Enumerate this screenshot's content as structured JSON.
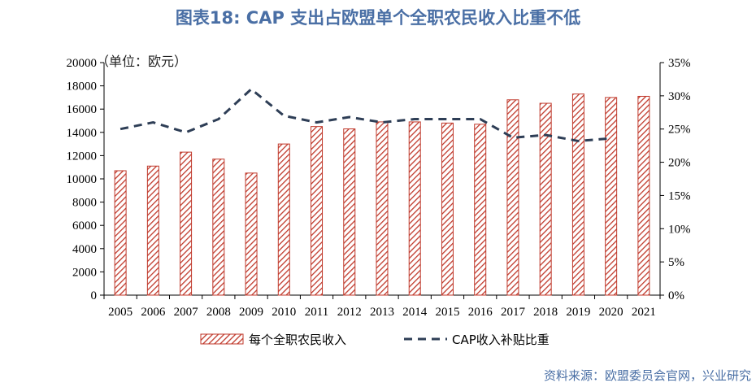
{
  "title": "图表18: CAP 支出占欧盟单个全职农民收入比重不低",
  "unit_label": "（单位：欧元）",
  "source": "资料来源：欧盟委员会官网，兴业研究",
  "colors": {
    "bar_stroke": "#c0392b",
    "bar_fill": "#ffffff",
    "line": "#2e3e56",
    "title": "#4a6fa5"
  },
  "chart_data": {
    "type": "bar",
    "categories": [
      "2005",
      "2006",
      "2007",
      "2008",
      "2009",
      "2010",
      "2011",
      "2012",
      "2013",
      "2014",
      "2015",
      "2016",
      "2017",
      "2018",
      "2019",
      "2020",
      "2021"
    ],
    "left_axis": {
      "ylim": [
        0,
        20000
      ],
      "ticks": [
        "0",
        "2000",
        "4000",
        "6000",
        "8000",
        "10000",
        "12000",
        "14000",
        "16000",
        "18000",
        "20000"
      ]
    },
    "right_axis": {
      "ylim": [
        0,
        35
      ],
      "ticks": [
        "0%",
        "5%",
        "10%",
        "15%",
        "20%",
        "25%",
        "30%",
        "35%"
      ]
    },
    "series": [
      {
        "name": "每个全职农民收入",
        "kind": "bar",
        "axis": "left",
        "values": [
          10700,
          11100,
          12300,
          11700,
          10500,
          13000,
          14500,
          14300,
          14900,
          14900,
          14800,
          14700,
          16800,
          16500,
          17300,
          17000,
          17100
        ]
      },
      {
        "name": "CAP收入补贴比重",
        "kind": "line",
        "style": "dashed",
        "axis": "right",
        "values": [
          25.0,
          26.0,
          24.5,
          26.5,
          31.0,
          27.0,
          26.0,
          26.8,
          26.0,
          26.5,
          26.5,
          26.5,
          23.7,
          24.1,
          23.2,
          23.6,
          null
        ]
      }
    ]
  }
}
